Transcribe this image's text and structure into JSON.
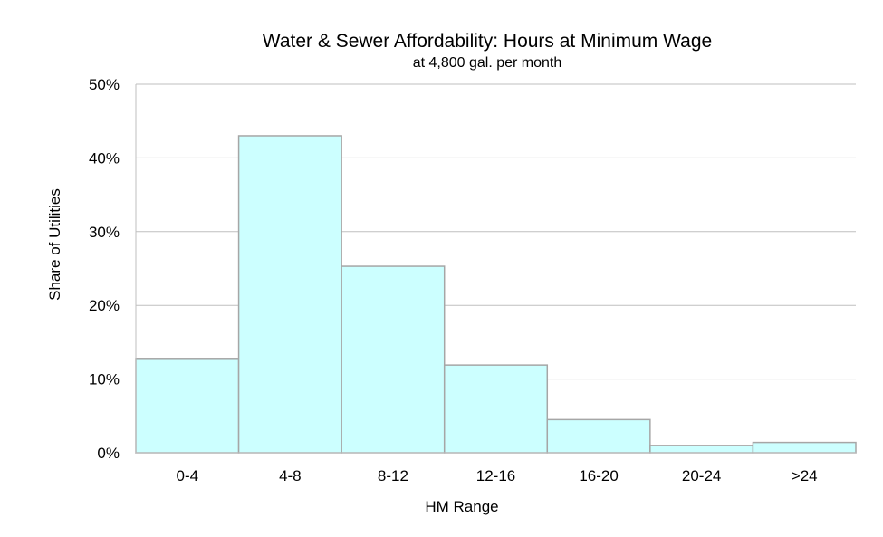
{
  "chart_data": {
    "type": "bar",
    "title": "Water & Sewer Affordability: Hours at Minimum Wage",
    "subtitle": "at 4,800 gal. per month",
    "xlabel": "HM Range",
    "ylabel": "Share of Utilities",
    "categories": [
      "0-4",
      "4-8",
      "8-12",
      "12-16",
      "16-20",
      "20-24",
      ">24"
    ],
    "values": [
      12.8,
      43.0,
      25.3,
      11.9,
      4.5,
      1.0,
      1.4
    ],
    "ylim": [
      0,
      50
    ],
    "yticks": [
      "0%",
      "10%",
      "20%",
      "30%",
      "40%",
      "50%"
    ],
    "grid": true,
    "bar_color": "#ccffff",
    "bar_edge_color": "#a6a6a6"
  }
}
